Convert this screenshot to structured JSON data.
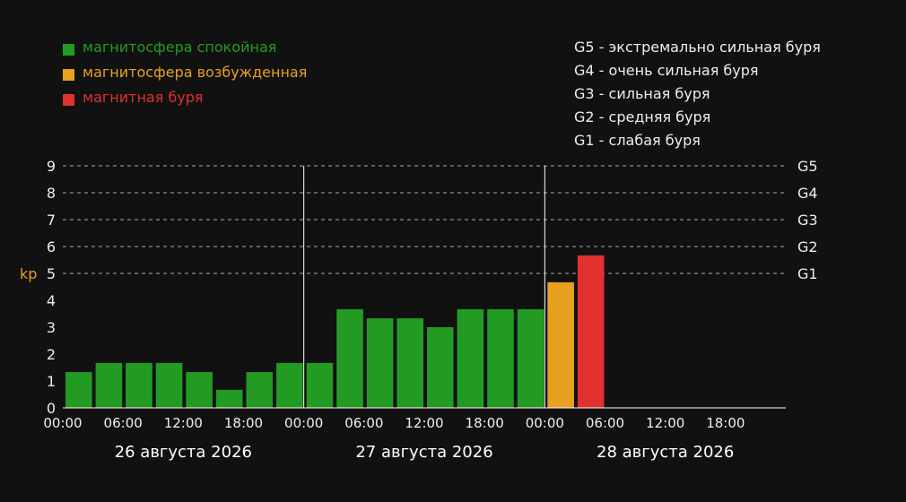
{
  "colors": {
    "background": "#111111",
    "quiet": "#239b23",
    "active": "#e8a020",
    "storm": "#e03030",
    "text": "#eeeeee",
    "kp_label": "#e8a020",
    "grid": "#aaaaaa"
  },
  "legend": [
    {
      "label": "магнитосфера спокойная",
      "color": "#239b23"
    },
    {
      "label": "магнитосфера возбужденная",
      "color": "#e8a020"
    },
    {
      "label": "магнитная буря",
      "color": "#e03030"
    }
  ],
  "storm_levels": [
    "G5 - экстремально сильная буря",
    "G4 - очень сильная буря",
    "G3 - сильная буря",
    "G2 - средняя буря",
    "G1 - слабая буря"
  ],
  "chart_data": {
    "type": "bar",
    "ylabel": "kp",
    "ylim": [
      0,
      9
    ],
    "yticks": [
      "0",
      "1",
      "2",
      "3",
      "4",
      "5",
      "6",
      "7",
      "8",
      "9"
    ],
    "grid": "dashed horizontal lines at kp 5–9",
    "g_levels": [
      {
        "label": "G1",
        "kp": 5
      },
      {
        "label": "G2",
        "kp": 6
      },
      {
        "label": "G3",
        "kp": 7
      },
      {
        "label": "G4",
        "kp": 8
      },
      {
        "label": "G5",
        "kp": 9
      }
    ],
    "days": [
      "26 августа 2026",
      "27 августа 2026",
      "28 августа 2026"
    ],
    "xticks": [
      "00:00",
      "06:00",
      "12:00",
      "18:00"
    ],
    "slots_per_day": 8,
    "values": [
      1.33,
      1.67,
      1.67,
      1.67,
      1.33,
      0.67,
      1.33,
      1.67,
      1.67,
      3.67,
      3.33,
      3.33,
      3.0,
      3.67,
      3.67,
      3.67,
      4.67,
      5.67
    ],
    "value_colors": [
      "quiet",
      "quiet",
      "quiet",
      "quiet",
      "quiet",
      "quiet",
      "quiet",
      "quiet",
      "quiet",
      "quiet",
      "quiet",
      "quiet",
      "quiet",
      "quiet",
      "quiet",
      "quiet",
      "active",
      "storm"
    ]
  }
}
